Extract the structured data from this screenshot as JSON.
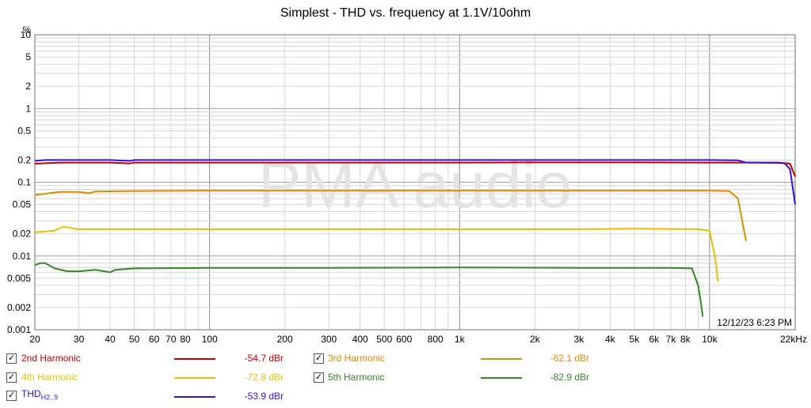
{
  "chart_data": {
    "type": "line",
    "title": "Simplest - THD vs. frequency at 1.1V/10ohm",
    "ylabel": "%",
    "xlabel": "",
    "x_scale": "log",
    "y_scale": "log",
    "xlim": [
      20,
      22000
    ],
    "ylim": [
      0.001,
      10
    ],
    "grid": true,
    "watermark": "PMA audio",
    "timestamp": "12/12/23 6:23 PM",
    "x_ticks": [
      "20",
      "30",
      "40",
      "50",
      "60",
      "70",
      "80",
      "100",
      "200",
      "300",
      "400",
      "500",
      "600",
      "800",
      "1k",
      "2k",
      "3k",
      "4k",
      "5k",
      "6k",
      "7k",
      "8k",
      "10k",
      "22kHz"
    ],
    "x_tick_values": [
      20,
      30,
      40,
      50,
      60,
      70,
      80,
      100,
      200,
      300,
      400,
      500,
      600,
      800,
      1000,
      2000,
      3000,
      4000,
      5000,
      6000,
      7000,
      8000,
      10000,
      22000
    ],
    "y_ticks": [
      "10",
      "5",
      "2",
      "1",
      "0.5",
      "0.2",
      "0.1",
      "0.05",
      "0.02",
      "0.01",
      "0.005",
      "0.002",
      "0.001"
    ],
    "y_tick_values": [
      10,
      5,
      2,
      1,
      0.5,
      0.2,
      0.1,
      0.05,
      0.02,
      0.01,
      0.005,
      0.002,
      0.001
    ],
    "series": [
      {
        "name": "2nd Harmonic",
        "value_label": "-54.7 dBr",
        "color": "#c00000",
        "x": [
          20,
          25,
          30,
          40,
          48,
          50,
          60,
          100,
          200,
          500,
          1000,
          2000,
          5000,
          10000,
          15000,
          20000,
          21000,
          22000
        ],
        "y": [
          0.178,
          0.185,
          0.185,
          0.185,
          0.18,
          0.185,
          0.185,
          0.185,
          0.185,
          0.185,
          0.185,
          0.186,
          0.186,
          0.185,
          0.185,
          0.182,
          0.178,
          0.12
        ]
      },
      {
        "name": "3rd Harmonic",
        "value_label": "-62.1 dBr",
        "color": "#e08a00",
        "x": [
          20,
          25,
          30,
          33,
          35,
          50,
          100,
          300,
          1000,
          3000,
          7000,
          10000,
          12000,
          13000,
          13500,
          14000
        ],
        "y": [
          0.067,
          0.074,
          0.074,
          0.071,
          0.075,
          0.076,
          0.077,
          0.077,
          0.077,
          0.077,
          0.077,
          0.077,
          0.076,
          0.06,
          0.03,
          0.016
        ]
      },
      {
        "name": "4th Harmonic",
        "value_label": "-72.8 dBr",
        "color": "#e8c000",
        "x": [
          20,
          24,
          26,
          28,
          30,
          40,
          50,
          100,
          300,
          1000,
          3000,
          5000,
          9000,
          10000,
          10500,
          10800
        ],
        "y": [
          0.021,
          0.022,
          0.025,
          0.024,
          0.023,
          0.023,
          0.023,
          0.023,
          0.023,
          0.023,
          0.023,
          0.0235,
          0.023,
          0.022,
          0.01,
          0.0045
        ]
      },
      {
        "name": "5th Harmonic",
        "value_label": "-82.9 dBr",
        "color": "#2e8b1e",
        "x": [
          20,
          21,
          22,
          24,
          27,
          30,
          35,
          40,
          42,
          50,
          100,
          300,
          1000,
          3000,
          7000,
          8500,
          9000,
          9200,
          9400
        ],
        "y": [
          0.0075,
          0.008,
          0.008,
          0.0068,
          0.0062,
          0.0062,
          0.0065,
          0.006,
          0.0065,
          0.0068,
          0.0069,
          0.0069,
          0.007,
          0.0069,
          0.0069,
          0.0068,
          0.004,
          0.0025,
          0.0015
        ]
      },
      {
        "name": "THD",
        "name_sub": "H2..9",
        "value_label": "-53.9 dBr",
        "color": "#3a10d8",
        "x": [
          20,
          22,
          25,
          30,
          40,
          48,
          50,
          60,
          100,
          300,
          1000,
          5000,
          10000,
          13000,
          14000,
          16000,
          19000,
          20000,
          21000,
          22000
        ],
        "y": [
          0.195,
          0.2,
          0.2,
          0.2,
          0.2,
          0.195,
          0.2,
          0.2,
          0.2,
          0.2,
          0.2,
          0.2,
          0.2,
          0.198,
          0.185,
          0.185,
          0.185,
          0.18,
          0.15,
          0.05
        ]
      }
    ]
  }
}
